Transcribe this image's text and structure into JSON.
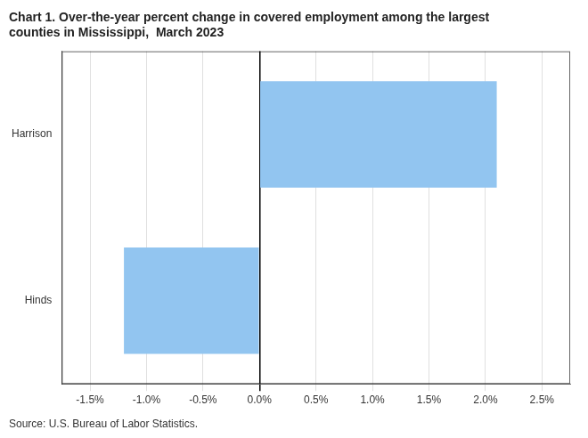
{
  "chart_data": {
    "type": "bar",
    "orientation": "horizontal",
    "title": [
      "Chart 1. Over-the-year percent change in covered employment among the largest",
      "counties in Mississippi,  March 2023"
    ],
    "annotations": [
      "Source: U.S. Bureau of Labor Statistics."
    ],
    "categories": [
      "Hinds",
      "Harrison"
    ],
    "values": [
      -1.2,
      2.1
    ],
    "color": "#92C5F0",
    "xlim": [
      -1.75,
      2.75
    ],
    "xticks": [
      {
        "value": -1.5,
        "label": "-1.5%"
      },
      {
        "value": -1.0,
        "label": "-1.0%"
      },
      {
        "value": -0.5,
        "label": "-0.5%"
      },
      {
        "value": 0.0,
        "label": "0.0%"
      },
      {
        "value": 0.5,
        "label": "0.5%"
      },
      {
        "value": 1.0,
        "label": "1.0%"
      },
      {
        "value": 1.5,
        "label": "1.5%"
      },
      {
        "value": 2.0,
        "label": "2.0%"
      },
      {
        "value": 2.5,
        "label": "2.5%"
      }
    ],
    "grid": true,
    "legend": false
  }
}
